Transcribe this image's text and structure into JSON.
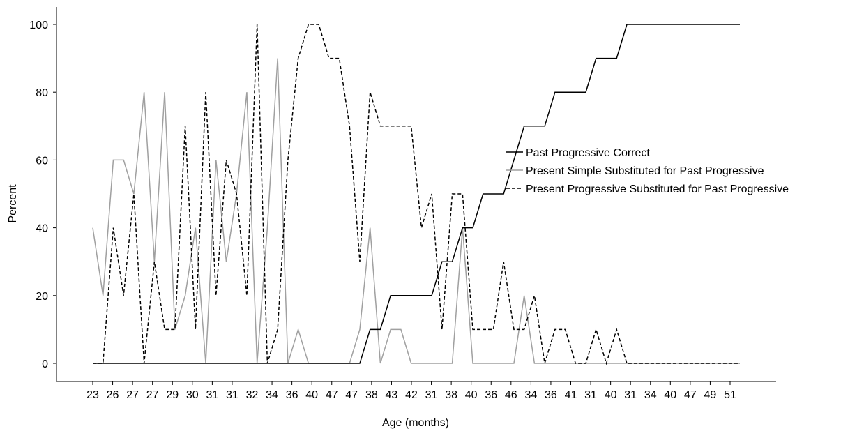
{
  "chart_data": {
    "type": "line",
    "xlabel": "Age (months)",
    "ylabel": "Percent",
    "ylim": [
      0,
      100
    ],
    "yticks": [
      0,
      20,
      40,
      60,
      80,
      100
    ],
    "x_tick_labels": [
      "23",
      "26",
      "27",
      "27",
      "29",
      "30",
      "31",
      "31",
      "32",
      "34",
      "36",
      "40",
      "47",
      "47",
      "38",
      "43",
      "42",
      "31",
      "38",
      "40",
      "36",
      "46",
      "34",
      "36",
      "41",
      "31",
      "40",
      "31",
      "34",
      "40",
      "47",
      "49",
      "51"
    ],
    "n_points": 64,
    "legend_position": "right",
    "series": [
      {
        "name": "Past Progressive Correct",
        "color": "#000000",
        "style": "solid",
        "values": [
          0,
          0,
          0,
          0,
          0,
          0,
          0,
          0,
          0,
          0,
          0,
          0,
          0,
          0,
          0,
          0,
          0,
          0,
          0,
          0,
          0,
          0,
          0,
          0,
          0,
          0,
          0,
          10,
          10,
          20,
          20,
          20,
          20,
          20,
          30,
          30,
          40,
          40,
          50,
          50,
          50,
          60,
          70,
          70,
          70,
          80,
          80,
          80,
          80,
          90,
          90,
          90,
          100,
          100,
          100,
          100,
          100,
          100,
          100,
          100,
          100,
          100,
          100,
          100
        ]
      },
      {
        "name": "Present Simple Substituted for Past Progressive",
        "color": "#a0a0a0",
        "style": "solid",
        "values": [
          40,
          20,
          60,
          60,
          50,
          80,
          30,
          80,
          10,
          20,
          40,
          0,
          60,
          30,
          50,
          80,
          0,
          40,
          90,
          0,
          10,
          0,
          0,
          0,
          0,
          0,
          10,
          40,
          0,
          10,
          10,
          0,
          0,
          0,
          0,
          0,
          40,
          0,
          0,
          0,
          0,
          0,
          20,
          0,
          0,
          0,
          0,
          0,
          0,
          0,
          0,
          0,
          0,
          0,
          0,
          0,
          0,
          0,
          0,
          0,
          0,
          0,
          0,
          0
        ]
      },
      {
        "name": "Present Progressive Substituted for Past Progressive",
        "color": "#000000",
        "style": "dashed",
        "values": [
          0,
          0,
          40,
          20,
          50,
          0,
          30,
          10,
          10,
          70,
          10,
          80,
          20,
          60,
          50,
          20,
          100,
          0,
          10,
          60,
          90,
          100,
          100,
          90,
          90,
          70,
          30,
          80,
          70,
          70,
          70,
          70,
          40,
          50,
          10,
          50,
          50,
          10,
          10,
          10,
          30,
          10,
          10,
          20,
          0,
          10,
          10,
          0,
          0,
          10,
          0,
          10,
          0,
          0,
          0,
          0,
          0,
          0,
          0,
          0,
          0,
          0,
          0,
          0
        ]
      }
    ]
  }
}
